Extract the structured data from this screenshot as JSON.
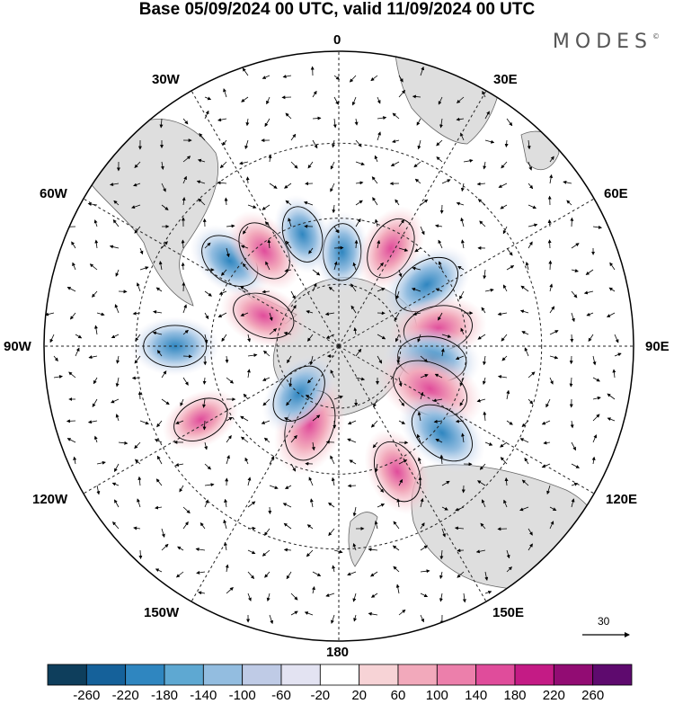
{
  "title": "Base 05/09/2024 00 UTC, valid 11/09/2024 00 UTC",
  "brand": "MODES",
  "brand_mark": "©",
  "longitude_labels": {
    "lon_0": "0",
    "lon_30e": "30E",
    "lon_60e": "60E",
    "lon_90e": "90E",
    "lon_120e": "120E",
    "lon_150e": "150E",
    "lon_180": "180",
    "lon_150w": "150W",
    "lon_120w": "120W",
    "lon_90w": "90W",
    "lon_60w": "60W",
    "lon_30w": "30W"
  },
  "reference_vector": "30",
  "colorbar": {
    "labels": [
      "-260",
      "-220",
      "-180",
      "-140",
      "-100",
      "-60",
      "-20",
      "20",
      "60",
      "100",
      "140",
      "180",
      "220",
      "260"
    ],
    "colors": [
      "#0e3e5c",
      "#15619a",
      "#2f86c0",
      "#5ea8d2",
      "#93bde0",
      "#bfcbe6",
      "#e3e3f2",
      "#ffffff",
      "#f7d3d6",
      "#f2a9bb",
      "#ec7fab",
      "#e04c9b",
      "#c41b85",
      "#920c73",
      "#5e0a6e"
    ]
  },
  "colors": {
    "land": "#dedede",
    "grid": "#222222",
    "coast": "#666666"
  },
  "anomaly_centers": [
    {
      "lon": 2,
      "lat": -60,
      "value": -60
    },
    {
      "lon": 28,
      "lat": -55,
      "value": 100
    },
    {
      "lon": 55,
      "lat": -56,
      "value": -140
    },
    {
      "lon": 80,
      "lat": -58,
      "value": 140
    },
    {
      "lon": 98,
      "lat": -60,
      "value": -140
    },
    {
      "lon": 115,
      "lat": -58,
      "value": 200
    },
    {
      "lon": 130,
      "lat": -48,
      "value": -140
    },
    {
      "lon": 155,
      "lat": -47,
      "value": 100
    },
    {
      "lon": -160,
      "lat": -63,
      "value": 160
    },
    {
      "lon": -140,
      "lat": -70,
      "value": -100
    },
    {
      "lon": -118,
      "lat": -42,
      "value": 60
    },
    {
      "lon": -90,
      "lat": -40,
      "value": -100
    },
    {
      "lon": -68,
      "lat": -64,
      "value": 100
    },
    {
      "lon": -52,
      "lat": -47,
      "value": -100
    },
    {
      "lon": -38,
      "lat": -52,
      "value": 100
    },
    {
      "lon": -18,
      "lat": -53,
      "value": -60
    }
  ]
}
